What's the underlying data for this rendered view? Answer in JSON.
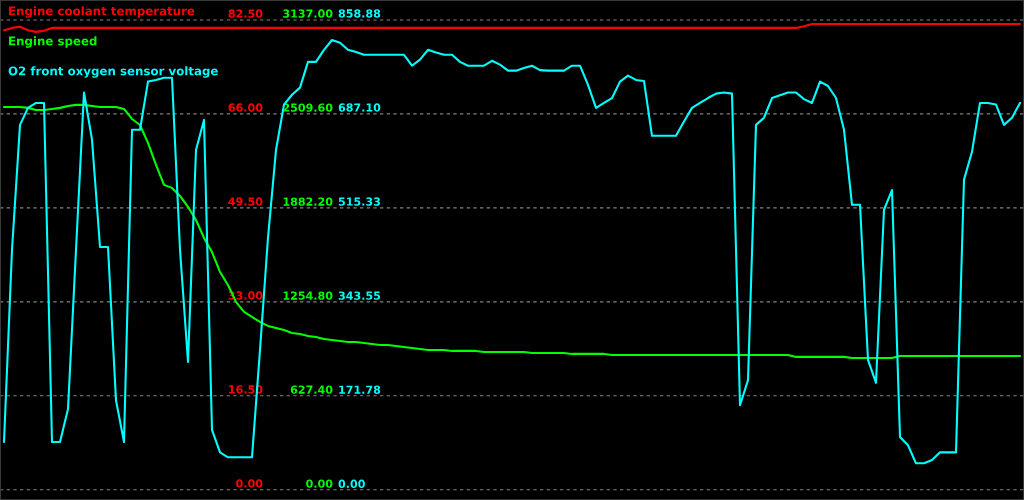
{
  "chart_data": {
    "type": "line",
    "categories": [
      null,
      null,
      null,
      null,
      null,
      null,
      null,
      null,
      null,
      null,
      null,
      null,
      null,
      null,
      null,
      null,
      null,
      null,
      null,
      null,
      null,
      null,
      null,
      null,
      null,
      null,
      null,
      null,
      null,
      null,
      null,
      null,
      null,
      null,
      null,
      null,
      null,
      null,
      null,
      null,
      null,
      null,
      null,
      null,
      null,
      null,
      null,
      null,
      null,
      null,
      null,
      null,
      null,
      null,
      null,
      null,
      null,
      null,
      null,
      null,
      null,
      null,
      null,
      null,
      null,
      null,
      null,
      null,
      null,
      null,
      null,
      null,
      null,
      null,
      null,
      null,
      null,
      null,
      null,
      null,
      null,
      null,
      null,
      null,
      null,
      null,
      null,
      null,
      null,
      null,
      null,
      null,
      null,
      null,
      null,
      null,
      null,
      null,
      null,
      null,
      null,
      null,
      null,
      null,
      null,
      null,
      null,
      null,
      null,
      null,
      null,
      null,
      null,
      null,
      null,
      null,
      null,
      null,
      null,
      null,
      null,
      null,
      null,
      null,
      null,
      null,
      null,
      null
    ],
    "series": [
      {
        "name": "Engine coolant temperature",
        "color": "#ff0000",
        "values": [
          80.7,
          81.1,
          81.3,
          80.7,
          80.4,
          80.6,
          81.1,
          81.1,
          81.1,
          81.1,
          81.1,
          81.1,
          81.1,
          81.1,
          81.1,
          81.1,
          81.1,
          81.1,
          81.1,
          81.1,
          81.1,
          81.1,
          81.1,
          81.1,
          81.1,
          81.1,
          81.1,
          81.1,
          81.1,
          81.1,
          81.1,
          81.1,
          81.1,
          81.1,
          81.1,
          81.1,
          81.1,
          81.1,
          81.1,
          81.1,
          81.1,
          81.1,
          81.1,
          81.1,
          81.1,
          81.1,
          81.1,
          81.1,
          81.1,
          81.1,
          81.1,
          81.1,
          81.1,
          81.1,
          81.1,
          81.1,
          81.1,
          81.1,
          81.1,
          81.1,
          81.1,
          81.1,
          81.1,
          81.1,
          81.1,
          81.1,
          81.1,
          81.1,
          81.1,
          81.1,
          81.1,
          81.1,
          81.1,
          81.1,
          81.1,
          81.1,
          81.1,
          81.1,
          81.1,
          81.1,
          81.1,
          81.1,
          81.1,
          81.1,
          81.1,
          81.1,
          81.1,
          81.1,
          81.1,
          81.1,
          81.1,
          81.1,
          81.1,
          81.1,
          81.1,
          81.1,
          81.1,
          81.1,
          81.1,
          81.1,
          81.4,
          81.8,
          81.8,
          81.8,
          81.8,
          81.8,
          81.8,
          81.8,
          81.8,
          81.8,
          81.8,
          81.8,
          81.8,
          81.8,
          81.8,
          81.8,
          81.8,
          81.8,
          81.8,
          81.8,
          81.8,
          81.8,
          81.8,
          81.8,
          81.8,
          81.8,
          81.8,
          81.8
        ]
      },
      {
        "name": "Engine speed",
        "color": "#00ff00",
        "axis": "y2",
        "values": [
          2556,
          2556,
          2556,
          2550,
          2536,
          2536,
          2543,
          2550,
          2563,
          2570,
          2570,
          2563,
          2556,
          2556,
          2556,
          2543,
          2476,
          2436,
          2316,
          2169,
          2036,
          2016,
          1962,
          1889,
          1802,
          1682,
          1588,
          1455,
          1368,
          1255,
          1188,
          1155,
          1121,
          1095,
          1081,
          1068,
          1048,
          1041,
          1028,
          1021,
          1008,
          1001,
          994,
          988,
          988,
          981,
          974,
          968,
          968,
          961,
          954,
          948,
          941,
          934,
          934,
          934,
          928,
          928,
          928,
          928,
          921,
          921,
          921,
          921,
          921,
          921,
          914,
          914,
          914,
          914,
          914,
          908,
          908,
          908,
          908,
          908,
          901,
          901,
          901,
          901,
          901,
          901,
          901,
          901,
          901,
          901,
          901,
          901,
          901,
          901,
          901,
          901,
          901,
          901,
          901,
          901,
          901,
          901,
          901,
          888,
          888,
          888,
          888,
          888,
          888,
          888,
          881,
          881,
          881,
          881,
          881,
          881,
          894,
          894,
          894,
          894,
          894,
          894,
          894,
          894,
          894,
          894,
          894,
          894,
          894,
          894,
          894,
          894
        ]
      },
      {
        "name": "O2 front oxygen sensor voltage",
        "color": "#00ffff",
        "axis": "y3",
        "values": [
          88,
          439,
          667,
          698,
          707,
          707,
          88,
          88,
          148,
          439,
          726,
          640,
          444,
          444,
          164,
          88,
          658,
          658,
          746,
          749,
          753,
          753,
          439,
          234,
          621,
          676,
          110,
          69,
          60,
          60,
          60,
          60,
          256,
          461,
          621,
          704,
          722,
          735,
          782,
          782,
          804,
          822,
          817,
          804,
          800,
          795,
          795,
          795,
          795,
          795,
          795,
          775,
          786,
          804,
          799,
          795,
          795,
          782,
          775,
          775,
          775,
          784,
          777,
          766,
          766,
          771,
          775,
          767,
          766,
          766,
          766,
          775,
          775,
          740,
          698,
          707,
          716,
          746,
          757,
          749,
          747,
          647,
          647,
          647,
          647,
          673,
          698,
          707,
          716,
          724,
          726,
          724,
          155,
          201,
          667,
          680,
          716,
          721,
          726,
          726,
          714,
          707,
          746,
          738,
          716,
          658,
          521,
          521,
          238,
          196,
          512,
          548,
          97,
          82,
          49,
          49,
          55,
          69,
          69,
          69,
          567,
          618,
          707,
          707,
          704,
          667,
          680,
          707
        ]
      }
    ],
    "ylim": [
      -1.8,
      86.0
    ],
    "yticks": [
      {
        "value": 0,
        "label": "0.00"
      },
      {
        "value": 16.5,
        "label": "16.50"
      },
      {
        "value": 33,
        "label": "33.00"
      },
      {
        "value": 49.5,
        "label": "49.50"
      },
      {
        "value": 66,
        "label": "66.00"
      },
      {
        "value": 82.5,
        "label": "82.50"
      }
    ],
    "y2lim": [
      -67,
      3270
    ],
    "y2ticks": [
      {
        "value": 0,
        "label": "0.00"
      },
      {
        "value": 627.4,
        "label": "627.40"
      },
      {
        "value": 1254.8,
        "label": "1254.80"
      },
      {
        "value": 1882.2,
        "label": "1882.20"
      },
      {
        "value": 2509.6,
        "label": "2509.60"
      },
      {
        "value": 3137,
        "label": "3137.00"
      }
    ],
    "y3lim": [
      -18,
      895
    ],
    "y3ticks": [
      {
        "value": 0,
        "label": "0.00"
      },
      {
        "value": 171.78,
        "label": "171.78"
      },
      {
        "value": 343.55,
        "label": "343.55"
      },
      {
        "value": 515.33,
        "label": "515.33"
      },
      {
        "value": 687.1,
        "label": "687.10"
      },
      {
        "value": 858.88,
        "label": "858.88"
      }
    ],
    "tick_labels": "y",
    "grid": "y",
    "legend": "top left",
    "marker": "none",
    "line_style": "solid"
  }
}
